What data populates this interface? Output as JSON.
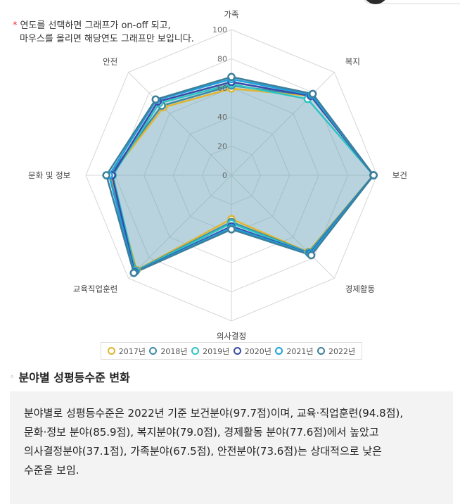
{
  "note": {
    "star": "*",
    "line1": "연도를 선택하면 그래프가 on-off 되고,",
    "line2": "마우스를 올리면 해당연도 그래프만 보입니다."
  },
  "chart_data": {
    "type": "radar",
    "axes": [
      "가족",
      "복지",
      "보건",
      "경제활동",
      "의사결정",
      "교육직업훈련",
      "문화 및 정보",
      "안전"
    ],
    "rlim": [
      0,
      100
    ],
    "radial_ticks": [
      "0",
      "20",
      "40",
      "60",
      "80",
      "100"
    ],
    "grid": true,
    "legend_position": "bottom",
    "series": [
      {
        "name": "2017년",
        "color": "#e0b530",
        "values": [
          59.5,
          77.0,
          97.5,
          74.5,
          30.0,
          92.0,
          83.0,
          66.0
        ]
      },
      {
        "name": "2018년",
        "color": "#3d8aa6",
        "values": [
          61.5,
          77.5,
          97.5,
          75.0,
          32.0,
          92.5,
          84.0,
          67.5
        ]
      },
      {
        "name": "2019년",
        "color": "#2ec4c4",
        "values": [
          62.5,
          74.0,
          97.6,
          75.5,
          33.0,
          93.0,
          81.5,
          70.0
        ]
      },
      {
        "name": "2020년",
        "color": "#3a4aa8",
        "values": [
          64.0,
          77.0,
          97.6,
          76.0,
          35.0,
          94.0,
          82.0,
          71.5
        ]
      },
      {
        "name": "2021년",
        "color": "#1ea0dc",
        "values": [
          66.0,
          78.0,
          97.7,
          76.5,
          36.0,
          94.5,
          84.0,
          73.0
        ]
      },
      {
        "name": "2022년",
        "color": "#3d7f99",
        "values": [
          67.5,
          79.0,
          97.7,
          77.6,
          37.1,
          94.8,
          85.9,
          73.6
        ]
      }
    ]
  },
  "section": {
    "bullet": "◦",
    "title": "분야별 성평등수준 변화"
  },
  "summary": "분야별로 성평등수준은 2022년 기준 보건분야(97.7점)이며, 교육·직업훈련(94.8점),\n문화·정보 분야(85.9점), 복지분야(79.0점), 경제활동 분야(77.6점)에서 높았고\n의사결정분야(37.1점), 가족분야(67.5점), 안전분야(73.6점)는 상대적으로 낮은\n수준을 보임."
}
